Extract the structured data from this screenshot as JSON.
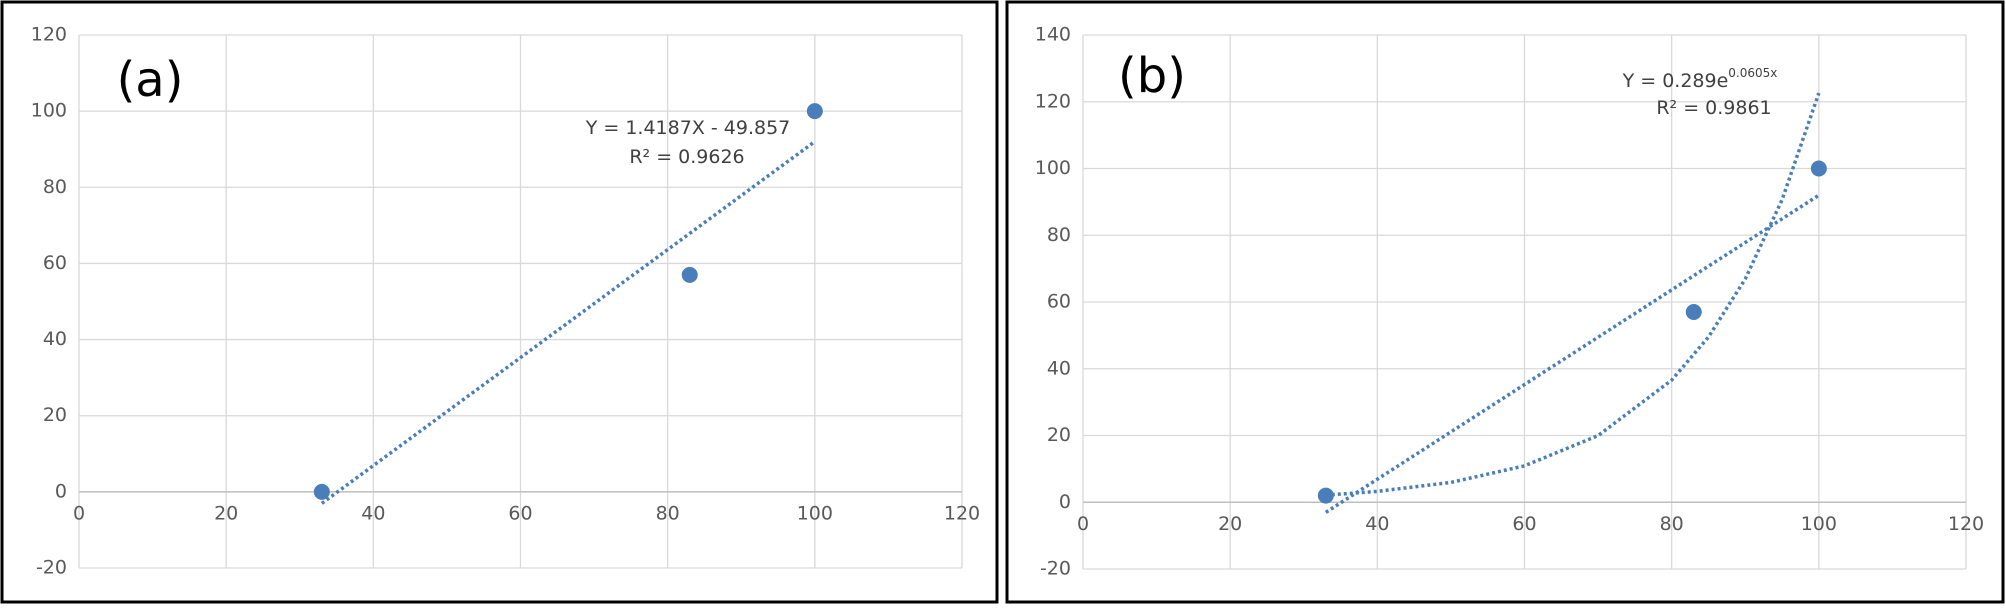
{
  "chart_data": [
    {
      "type": "scatter",
      "label": "(a)",
      "x": [
        33,
        83,
        100
      ],
      "values": [
        0,
        57,
        100
      ],
      "color": "#4a7ebb",
      "trendlines": [
        {
          "x": [
            33,
            100
          ],
          "values": [
            -3.03,
            92.0
          ],
          "color": "#4a7ebb"
        }
      ],
      "annotations": [
        {
          "text": "Y = 1.4187X - 49.857"
        },
        {
          "text": "R² = 0.9626"
        }
      ],
      "xlim": [
        0,
        120
      ],
      "xticks": [
        0,
        20,
        40,
        60,
        80,
        100,
        120
      ],
      "ylim": [
        -20,
        120
      ],
      "yticks": [
        -20,
        0,
        20,
        40,
        60,
        80,
        100,
        120
      ],
      "grid": true
    },
    {
      "type": "scatter",
      "label": "(b)",
      "x": [
        33,
        83,
        100
      ],
      "values": [
        2,
        57,
        100
      ],
      "color": "#4a7ebb",
      "trendlines": [
        {
          "x": [
            33,
            100
          ],
          "values": [
            -3.03,
            92.0
          ],
          "color": "#4a7ebb"
        },
        {
          "x": [
            33,
            40,
            50,
            60,
            70,
            80,
            85,
            90,
            95,
            100
          ],
          "values": [
            2.13,
            3.25,
            5.95,
            10.9,
            19.97,
            36.6,
            49.5,
            66.9,
            90.6,
            122.6
          ],
          "color": "#4a7ebb"
        }
      ],
      "annotations": [
        {
          "text": "Y = 0.289e",
          "superscript": "0.0605x"
        },
        {
          "text": "R² = 0.9861"
        }
      ],
      "xlim": [
        0,
        120
      ],
      "xticks": [
        0,
        20,
        40,
        60,
        80,
        100,
        120
      ],
      "ylim": [
        -20,
        140
      ],
      "yticks": [
        -20,
        0,
        20,
        40,
        60,
        80,
        100,
        120,
        140
      ],
      "grid": true
    }
  ]
}
